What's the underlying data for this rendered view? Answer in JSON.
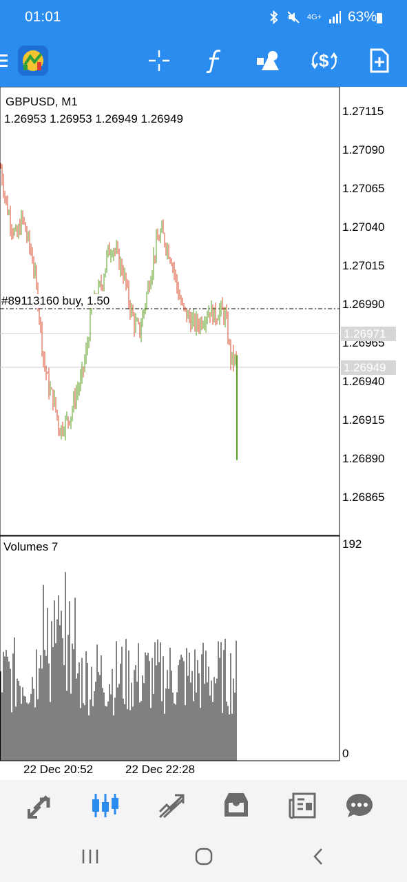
{
  "status_bar": {
    "time": "01:01",
    "network": "4G+",
    "battery": "63%",
    "icons": [
      "bluetooth-icon",
      "mute-icon",
      "signal-icon",
      "battery-icon"
    ]
  },
  "toolbar": {
    "icons": [
      "menu-icon",
      "app-logo",
      "crosshair-icon",
      "indicators-icon",
      "objects-icon",
      "trade-icon",
      "new-order-icon"
    ]
  },
  "chart": {
    "symbol": "GBPUSD, M1",
    "ohlc": "1.26953 1.26953 1.26949 1.26949",
    "order_line_label": "#89113160 buy, 1.50",
    "price_axis": [
      "1.27115",
      "1.27090",
      "1.27065",
      "1.27040",
      "1.27015",
      "1.26990",
      "1.26965",
      "1.26940",
      "1.26915",
      "1.26890",
      "1.26865"
    ],
    "price_tags": [
      "1.26971",
      "1.26949"
    ],
    "volume_label": "Volumes 7",
    "volume_axis": [
      "192",
      "0"
    ],
    "time_axis": [
      "22 Dec 20:52",
      "22 Dec 22:28"
    ],
    "colors": {
      "up": "#5a9e1e",
      "down": "#d9482b",
      "grid_line": "#000000",
      "order_line": "#000000"
    }
  },
  "chart_data": {
    "type": "candlestick",
    "symbol": "GBPUSD",
    "timeframe": "M1",
    "ylim": [
      1.26855,
      1.27125
    ],
    "price_close_series": [
      1.27085,
      1.2706,
      1.27045,
      1.27035,
      1.2705,
      1.27035,
      1.2702,
      1.2699,
      1.2695,
      1.2693,
      1.2692,
      1.269,
      1.26905,
      1.2691,
      1.26925,
      1.26935,
      1.26955,
      1.26985,
      1.26995,
      1.27005,
      1.27025,
      1.2703,
      1.2702,
      1.2701,
      1.2699,
      1.26975,
      1.2697,
      1.2699,
      1.2701,
      1.2703,
      1.2704,
      1.2703,
      1.2702,
      1.27,
      1.26985,
      1.2698,
      1.26975,
      1.26975,
      1.2698,
      1.26985,
      1.2698,
      1.26985,
      1.2698,
      1.2695,
      1.26949
    ],
    "last_price": 1.26949,
    "marked_price": 1.26971,
    "order_line_price": 1.26989,
    "volume_ylim": [
      0,
      192
    ],
    "time_labels": [
      "22 Dec 20:52",
      "22 Dec 22:28"
    ]
  },
  "bottom_nav": {
    "items": [
      "quotes-icon",
      "chart-icon",
      "trade-icon",
      "history-icon",
      "news-icon",
      "chat-icon"
    ],
    "active": "chart-icon"
  },
  "system_nav": {
    "items": [
      "recent-apps-icon",
      "home-icon",
      "back-icon"
    ]
  }
}
